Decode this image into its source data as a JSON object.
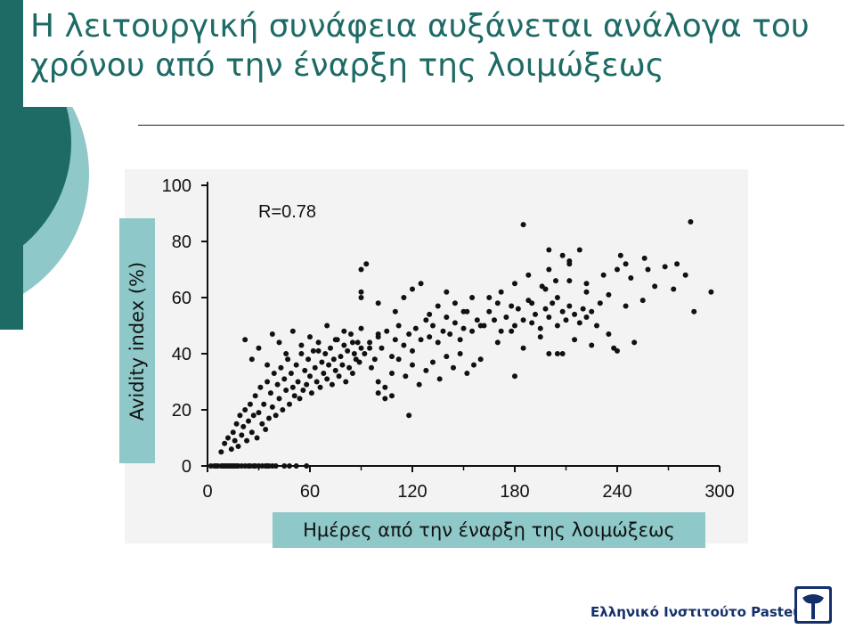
{
  "slide": {
    "title": "Η λειτουργική συνάφεια αυξάνεται ανάλογα του χρόνου από την έναρξη της λοιμώξεως",
    "organization": "Ελληνικό Ινστιτούτο Pasteur",
    "logo_icon": "pasteur-logo-icon"
  },
  "colors": {
    "accent_dark": "#1e6b66",
    "accent_light": "#8ec8c8",
    "text_title": "#1e6b66",
    "org_text": "#14306b"
  },
  "chart_data": {
    "type": "scatter",
    "title": "",
    "annotation": "R=0.78",
    "xlabel": "Ημέρες από την έναρξη της λοιμώξεως",
    "ylabel": "Avidity index (%)",
    "xlim": [
      0,
      300
    ],
    "ylim": [
      0,
      100
    ],
    "xticks": [
      0,
      60,
      120,
      180,
      240,
      300
    ],
    "yticks": [
      0,
      20,
      40,
      60,
      80,
      100
    ],
    "grid": false,
    "legend": "none",
    "series": [
      {
        "x": [
          2,
          4,
          5,
          6,
          8,
          9,
          10,
          11,
          12,
          13,
          14,
          15,
          16,
          17,
          18,
          20,
          22,
          24,
          25,
          27,
          28,
          30,
          32,
          34,
          35,
          36,
          38,
          40,
          45,
          48,
          52,
          58,
          8,
          10,
          12,
          14,
          15,
          16,
          17,
          18,
          19,
          20,
          21,
          22,
          23,
          24,
          25,
          26,
          27,
          28,
          29,
          30,
          31,
          32,
          33,
          34,
          35,
          36,
          37,
          38,
          39,
          40,
          41,
          42,
          43,
          44,
          45,
          46,
          47,
          48,
          49,
          50,
          51,
          52,
          53,
          54,
          55,
          56,
          57,
          58,
          59,
          60,
          61,
          62,
          63,
          64,
          65,
          66,
          67,
          68,
          69,
          70,
          71,
          72,
          73,
          74,
          75,
          76,
          77,
          78,
          79,
          80,
          81,
          82,
          83,
          84,
          85,
          86,
          87,
          88,
          89,
          90,
          22,
          26,
          30,
          35,
          38,
          42,
          46,
          50,
          55,
          60,
          65,
          70,
          75,
          80,
          85,
          90,
          95,
          100,
          92,
          95,
          98,
          100,
          102,
          105,
          108,
          110,
          112,
          115,
          118,
          120,
          122,
          125,
          128,
          130,
          132,
          135,
          138,
          140,
          142,
          145,
          148,
          150,
          152,
          155,
          158,
          160,
          96,
          100,
          104,
          108,
          112,
          116,
          120,
          124,
          128,
          132,
          136,
          140,
          144,
          148,
          152,
          156,
          160,
          90,
          90,
          90,
          93,
          100,
          110,
          115,
          120,
          125,
          130,
          135,
          140,
          145,
          150,
          155,
          162,
          165,
          168,
          170,
          172,
          175,
          178,
          180,
          182,
          185,
          188,
          190,
          192,
          195,
          198,
          200,
          202,
          205,
          208,
          210,
          212,
          215,
          218,
          220,
          222,
          225,
          228,
          230,
          165,
          172,
          180,
          190,
          198,
          205,
          212,
          222,
          235,
          245,
          255,
          262,
          188,
          196,
          200,
          204,
          212,
          222,
          232,
          240,
          248,
          256,
          268,
          273,
          280,
          285,
          295,
          170,
          178,
          185,
          195,
          205,
          215,
          225,
          235,
          240,
          250,
          185,
          200,
          208,
          212,
          218,
          242,
          245,
          258,
          275,
          283,
          100,
          104,
          108,
          118,
          180,
          200,
          208,
          238
        ],
        "y": [
          0,
          0,
          0,
          0,
          0,
          0,
          0,
          0,
          0,
          0,
          0,
          0,
          0,
          0,
          0,
          0,
          0,
          0,
          0,
          0,
          0,
          0,
          0,
          0,
          0,
          0,
          0,
          0,
          0,
          0,
          0,
          0,
          5,
          8,
          10,
          6,
          12,
          9,
          15,
          7,
          18,
          11,
          14,
          20,
          9,
          16,
          22,
          12,
          18,
          25,
          10,
          19,
          28,
          15,
          22,
          13,
          30,
          17,
          26,
          21,
          33,
          18,
          29,
          24,
          35,
          20,
          31,
          27,
          38,
          22,
          33,
          28,
          25,
          36,
          30,
          24,
          40,
          27,
          34,
          29,
          38,
          32,
          26,
          41,
          35,
          30,
          44,
          28,
          37,
          33,
          40,
          31,
          36,
          42,
          29,
          38,
          34,
          45,
          32,
          39,
          36,
          43,
          30,
          41,
          35,
          47,
          33,
          40,
          38,
          44,
          37,
          42,
          45,
          38,
          42,
          36,
          47,
          44,
          40,
          48,
          43,
          46,
          41,
          50,
          45,
          48,
          44,
          49,
          42,
          47,
          40,
          44,
          38,
          46,
          42,
          48,
          39,
          45,
          50,
          43,
          47,
          41,
          49,
          45,
          52,
          46,
          50,
          44,
          48,
          53,
          47,
          51,
          45,
          49,
          55,
          48,
          52,
          50,
          35,
          30,
          28,
          33,
          38,
          32,
          36,
          29,
          34,
          37,
          31,
          39,
          35,
          40,
          33,
          36,
          38,
          60,
          62,
          70,
          72,
          58,
          55,
          60,
          63,
          65,
          54,
          57,
          62,
          58,
          55,
          60,
          50,
          55,
          52,
          58,
          48,
          53,
          57,
          50,
          56,
          52,
          59,
          51,
          54,
          49,
          56,
          53,
          58,
          50,
          55,
          52,
          57,
          54,
          51,
          56,
          53,
          55,
          50,
          58,
          60,
          62,
          65,
          58,
          63,
          60,
          66,
          62,
          61,
          57,
          59,
          64,
          68,
          64,
          70,
          66,
          72,
          65,
          68,
          70,
          67,
          74,
          71,
          63,
          68,
          55,
          62,
          44,
          48,
          42,
          46,
          40,
          45,
          43,
          47,
          41,
          44,
          86,
          77,
          75,
          73,
          77,
          75,
          72,
          70,
          72,
          87,
          26,
          24,
          25,
          18,
          32,
          40,
          40,
          42
        ]
      }
    ]
  }
}
